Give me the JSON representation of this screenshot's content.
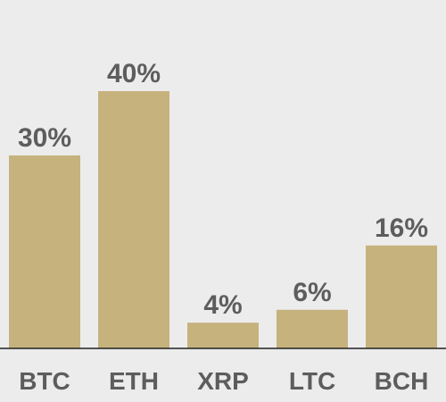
{
  "chart_data": {
    "type": "bar",
    "categories": [
      "BTC",
      "ETH",
      "XRP",
      "LTC",
      "BCH"
    ],
    "values": [
      30,
      40,
      4,
      6,
      16
    ],
    "value_labels": [
      "30%",
      "40%",
      "4%",
      "6%",
      "16%"
    ],
    "ylim": [
      0,
      40
    ],
    "title": "",
    "xlabel": "",
    "ylabel": "",
    "grid": false,
    "legend": "none",
    "colors": {
      "bar": "#c6b27d",
      "text": "#5d5d5d",
      "background": "#ececec",
      "axis": "#222222"
    }
  }
}
